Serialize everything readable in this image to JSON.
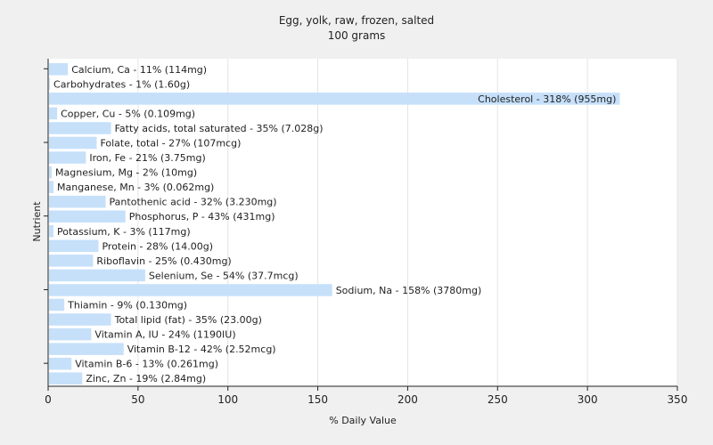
{
  "chart_data": {
    "type": "bar",
    "orientation": "horizontal",
    "title": "Egg, yolk, raw, frozen, salted",
    "subtitle": "100 grams",
    "xlabel": "% Daily Value",
    "ylabel": "Nutrient",
    "xlim": [
      0,
      350
    ],
    "xticks": [
      0,
      50,
      100,
      150,
      200,
      250,
      300,
      350
    ],
    "grid": "vertical",
    "bar_color": "#c6e0fa",
    "categories": [
      "Calcium, Ca",
      "Carbohydrates",
      "Cholesterol",
      "Copper, Cu",
      "Fatty acids, total saturated",
      "Folate, total",
      "Iron, Fe",
      "Magnesium, Mg",
      "Manganese, Mn",
      "Pantothenic acid",
      "Phosphorus, P",
      "Potassium, K",
      "Protein",
      "Riboflavin",
      "Selenium, Se",
      "Sodium, Na",
      "Thiamin",
      "Total lipid (fat)",
      "Vitamin A, IU",
      "Vitamin B-12",
      "Vitamin B-6",
      "Zinc, Zn"
    ],
    "values": [
      11,
      1,
      318,
      5,
      35,
      27,
      21,
      2,
      3,
      32,
      43,
      3,
      28,
      25,
      54,
      158,
      9,
      35,
      24,
      42,
      13,
      19
    ],
    "labels": [
      "Calcium, Ca - 11% (114mg)",
      "Carbohydrates - 1% (1.60g)",
      "Cholesterol - 318% (955mg)",
      "Copper, Cu - 5% (0.109mg)",
      "Fatty acids, total saturated - 35% (7.028g)",
      "Folate, total - 27% (107mcg)",
      "Iron, Fe - 21% (3.75mg)",
      "Magnesium, Mg - 2% (10mg)",
      "Manganese, Mn - 3% (0.062mg)",
      "Pantothenic acid - 32% (3.230mg)",
      "Phosphorus, P - 43% (431mg)",
      "Potassium, K - 3% (117mg)",
      "Protein - 28% (14.00g)",
      "Riboflavin - 25% (0.430mg)",
      "Selenium, Se - 54% (37.7mcg)",
      "Sodium, Na - 158% (3780mg)",
      "Thiamin - 9% (0.130mg)",
      "Total lipid (fat) - 35% (23.00g)",
      "Vitamin A, IU - 24% (1190IU)",
      "Vitamin B-12 - 42% (2.52mcg)",
      "Vitamin B-6 - 13% (0.261mg)",
      "Zinc, Zn - 19% (2.84mg)"
    ]
  }
}
